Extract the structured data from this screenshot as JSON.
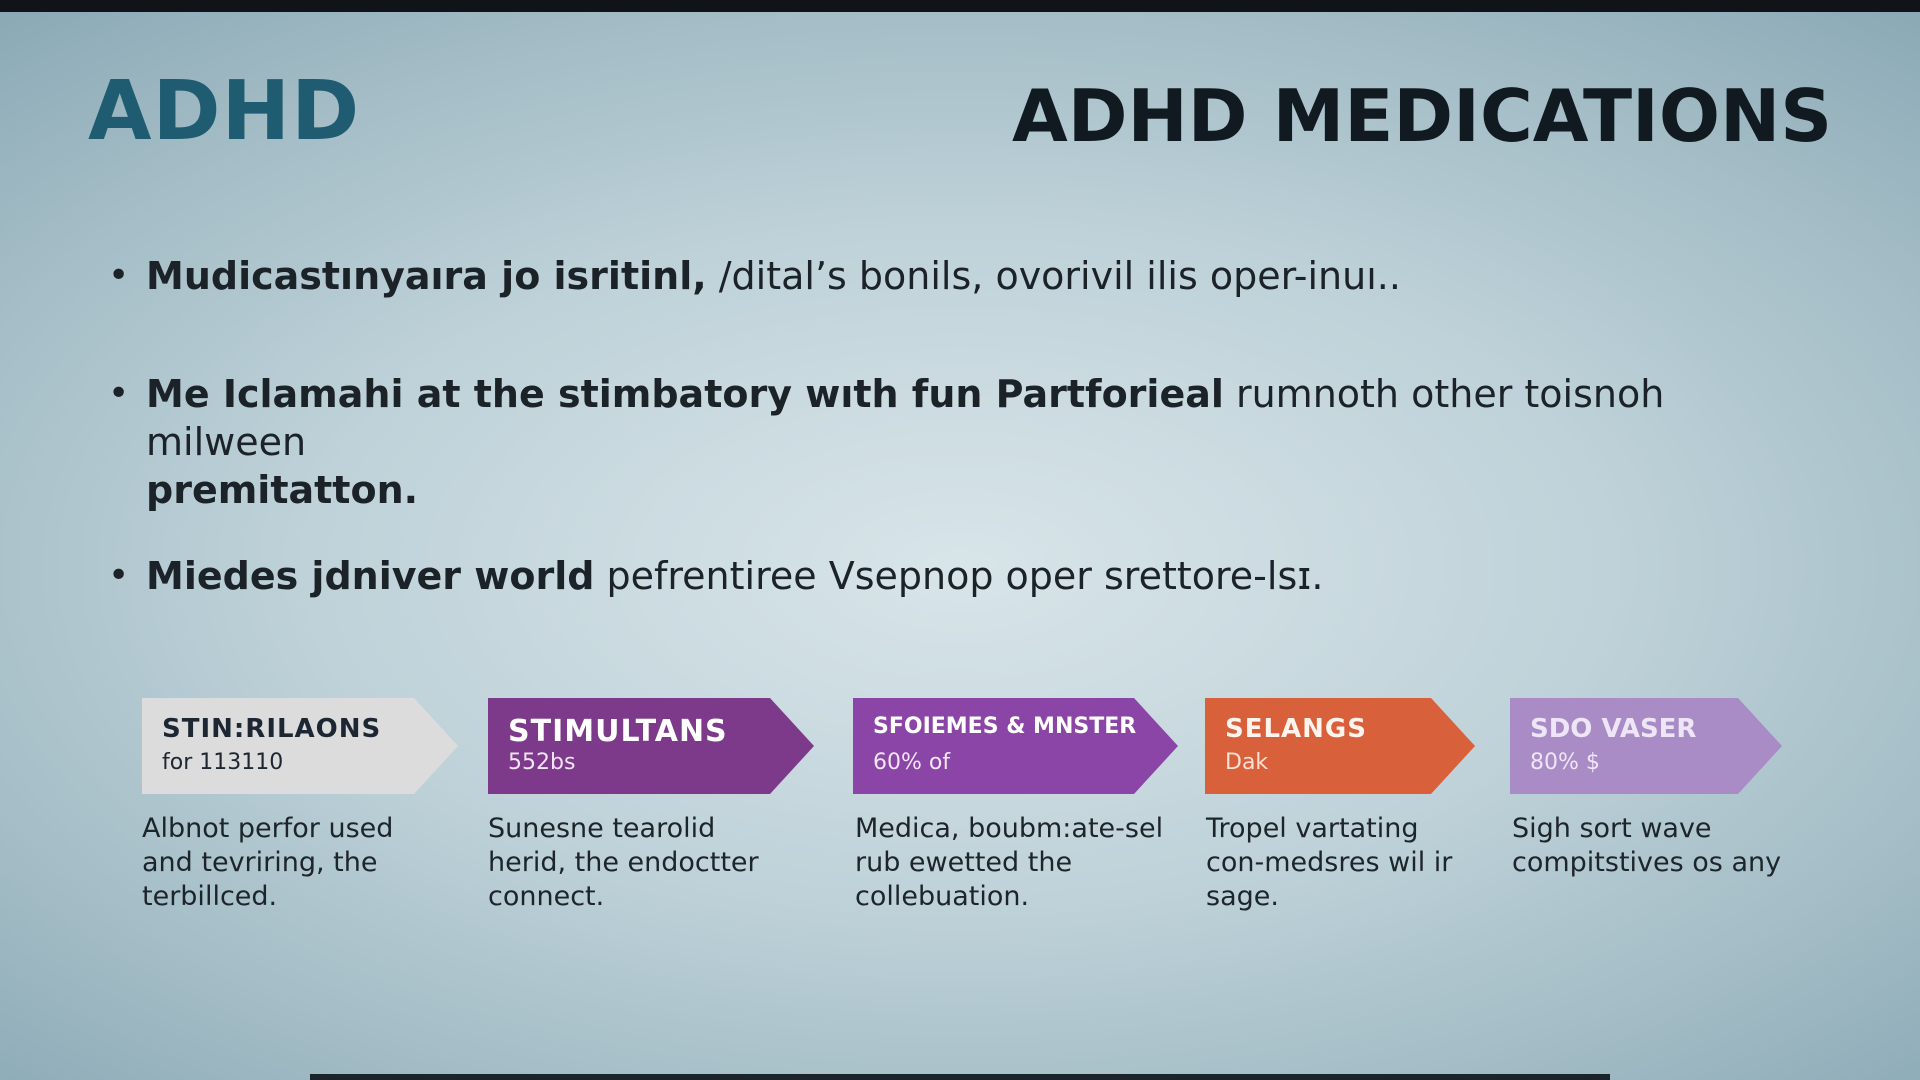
{
  "slide": {
    "title_left": "ADHD",
    "title_right": "ADHD MEDICATIONS",
    "bullets": [
      {
        "bold": "Mudicastınyaıra jo isritinl,",
        "regular": " /dital’s bonils, ovorivil ilis oper-inuı.."
      },
      {
        "bold": "Me Iclamahi at the stimbatory wıth fun Partforieal",
        "regular": " rumnoth other toisnoh milween",
        "bold2": "premitatton."
      },
      {
        "bold": "Miedes jdniver world",
        "regular": " pefrentiree Vsepnop oper srettore-lsɪ."
      }
    ],
    "categories": [
      {
        "title": "STIN:RILAONS",
        "sub": "for 113110",
        "color": "#dcdcdc",
        "title_color": "#1c2733",
        "sub_color": "#1c2733",
        "desc": [
          "Albnot perfor used",
          "and tevriring, the",
          "terbillced."
        ]
      },
      {
        "title": "STIMULTANS",
        "sub": "552bs",
        "color": "#7e3a8a",
        "title_color": "#ffffff",
        "sub_color": "#f1e4f4",
        "desc": [
          "Sunesne tearolid",
          "herid, the endoctter",
          "connect."
        ]
      },
      {
        "title": "SFOIEMES & MNSTER",
        "sub": "60% of",
        "color": "#8a45a6",
        "title_color": "#ffffff",
        "sub_color": "#f3e6f7",
        "desc": [
          "Medica, boubm:ate-sel",
          "rub ewetted the",
          "collebuation."
        ]
      },
      {
        "title": "SELANGS",
        "sub": "Dak",
        "color": "#d8603a",
        "title_color": "#fff4ee",
        "sub_color": "#fbe1d6",
        "desc": [
          "Tropel vartating",
          "con-medsres wil ir",
          "sage."
        ]
      },
      {
        "title": "SDO VASER",
        "sub": "80% $",
        "color": "#a98bc6",
        "title_color": "#eee6f6",
        "sub_color": "#eee6f6",
        "desc": [
          "Sigh sort wave",
          "compitstives os any"
        ]
      }
    ]
  }
}
